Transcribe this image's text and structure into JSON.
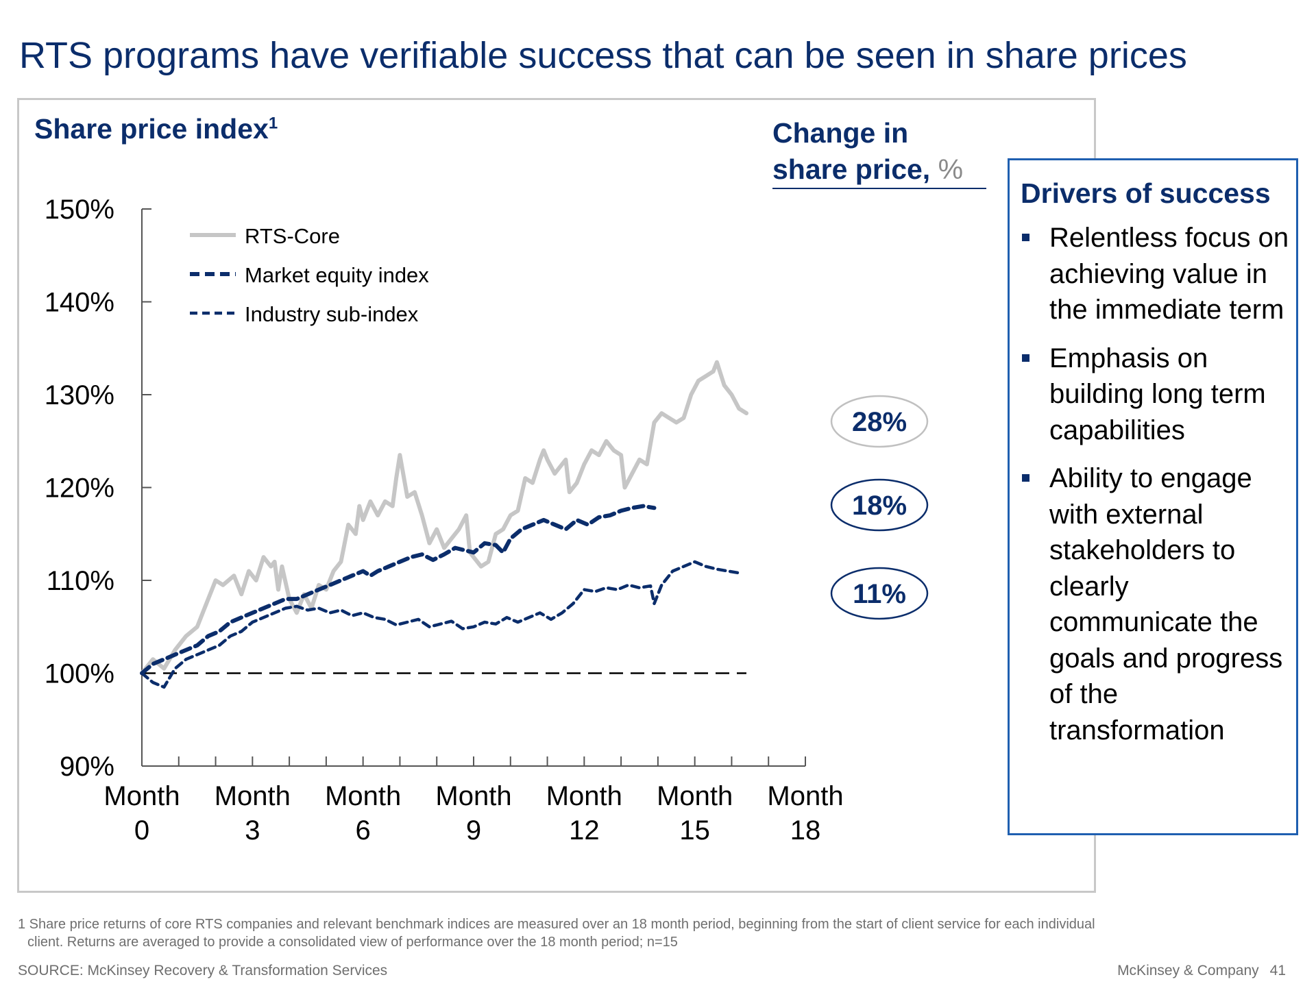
{
  "slide": {
    "title": "RTS programs have verifiable success that can be seen in share prices"
  },
  "chart_header": {
    "title": "Share price index",
    "title_sup": "1",
    "change_label": "Change in share price,",
    "change_unit": "%"
  },
  "chart_data": {
    "type": "line",
    "title": "Share price index",
    "xlabel": "",
    "ylabel": "",
    "xlim": [
      0,
      18
    ],
    "ylim": [
      90,
      150
    ],
    "y_ticks": [
      90,
      100,
      110,
      120,
      130,
      140,
      150
    ],
    "y_tick_labels": [
      "90%",
      "100%",
      "110%",
      "120%",
      "130%",
      "140%",
      "150%"
    ],
    "x_ticks": [
      0,
      3,
      6,
      9,
      12,
      15,
      18
    ],
    "x_tick_labels": [
      [
        "Month",
        "0"
      ],
      [
        "Month",
        "3"
      ],
      [
        "Month",
        "6"
      ],
      [
        "Month",
        "9"
      ],
      [
        "Month",
        "12"
      ],
      [
        "Month",
        "15"
      ],
      [
        "Month",
        "18"
      ]
    ],
    "grid": false,
    "legend_position": "top-left",
    "reference_line": {
      "y": 100,
      "style": "dashed",
      "color": "#000000"
    },
    "series": [
      {
        "name": "RTS-Core",
        "color": "#c6c6c6",
        "style": "solid",
        "end_label": "28%",
        "points": [
          [
            0,
            100
          ],
          [
            0.3,
            101.5
          ],
          [
            0.6,
            100.5
          ],
          [
            0.9,
            102.5
          ],
          [
            1.2,
            104
          ],
          [
            1.5,
            105
          ],
          [
            1.8,
            108
          ],
          [
            2.0,
            110
          ],
          [
            2.2,
            109.5
          ],
          [
            2.5,
            110.5
          ],
          [
            2.7,
            108.5
          ],
          [
            2.9,
            111
          ],
          [
            3.1,
            110
          ],
          [
            3.3,
            112.5
          ],
          [
            3.5,
            111.5
          ],
          [
            3.6,
            112
          ],
          [
            3.7,
            109
          ],
          [
            3.8,
            111.5
          ],
          [
            4.0,
            108
          ],
          [
            4.2,
            106.5
          ],
          [
            4.4,
            108.5
          ],
          [
            4.6,
            107
          ],
          [
            4.8,
            109.5
          ],
          [
            5.0,
            109
          ],
          [
            5.2,
            111
          ],
          [
            5.4,
            112
          ],
          [
            5.6,
            116
          ],
          [
            5.8,
            115
          ],
          [
            5.9,
            118
          ],
          [
            6.0,
            116.5
          ],
          [
            6.2,
            118.5
          ],
          [
            6.4,
            117
          ],
          [
            6.6,
            118.5
          ],
          [
            6.8,
            118
          ],
          [
            6.9,
            121
          ],
          [
            7.0,
            123.5
          ],
          [
            7.2,
            119
          ],
          [
            7.4,
            119.5
          ],
          [
            7.6,
            117
          ],
          [
            7.8,
            114
          ],
          [
            8.0,
            115.5
          ],
          [
            8.2,
            113.5
          ],
          [
            8.4,
            114.5
          ],
          [
            8.6,
            115.5
          ],
          [
            8.8,
            117
          ],
          [
            8.9,
            113
          ],
          [
            9.0,
            112.5
          ],
          [
            9.2,
            111.5
          ],
          [
            9.4,
            112
          ],
          [
            9.6,
            115
          ],
          [
            9.8,
            115.5
          ],
          [
            10.0,
            117
          ],
          [
            10.2,
            117.5
          ],
          [
            10.4,
            121
          ],
          [
            10.6,
            120.5
          ],
          [
            10.8,
            123
          ],
          [
            10.9,
            124
          ],
          [
            11.0,
            123
          ],
          [
            11.2,
            121.5
          ],
          [
            11.5,
            123
          ],
          [
            11.6,
            119.5
          ],
          [
            11.8,
            120.5
          ],
          [
            12.0,
            122.5
          ],
          [
            12.2,
            124
          ],
          [
            12.4,
            123.5
          ],
          [
            12.6,
            125
          ],
          [
            12.8,
            124
          ],
          [
            13.0,
            123.5
          ],
          [
            13.1,
            120
          ],
          [
            13.3,
            121.5
          ],
          [
            13.5,
            123
          ],
          [
            13.7,
            122.5
          ],
          [
            13.9,
            127
          ],
          [
            14.1,
            128
          ],
          [
            14.3,
            127.5
          ],
          [
            14.5,
            127
          ],
          [
            14.7,
            127.5
          ],
          [
            14.9,
            130
          ],
          [
            15.1,
            131.5
          ],
          [
            15.3,
            132
          ],
          [
            15.5,
            132.5
          ],
          [
            15.6,
            133.5
          ],
          [
            15.8,
            131
          ],
          [
            16.0,
            130
          ],
          [
            16.2,
            128.5
          ],
          [
            16.4,
            128
          ]
        ]
      },
      {
        "name": "Market equity index",
        "color": "#0b2d6b",
        "style": "dashed-bold",
        "end_label": "18%",
        "points": [
          [
            0,
            100
          ],
          [
            0.3,
            101
          ],
          [
            0.6,
            101.5
          ],
          [
            0.9,
            102
          ],
          [
            1.2,
            102.5
          ],
          [
            1.5,
            103
          ],
          [
            1.8,
            104
          ],
          [
            2.1,
            104.5
          ],
          [
            2.4,
            105.5
          ],
          [
            2.7,
            106
          ],
          [
            3.0,
            106.5
          ],
          [
            3.3,
            107
          ],
          [
            3.6,
            107.5
          ],
          [
            3.9,
            108
          ],
          [
            4.2,
            108
          ],
          [
            4.5,
            108.5
          ],
          [
            4.8,
            109
          ],
          [
            5.1,
            109.5
          ],
          [
            5.4,
            110
          ],
          [
            5.7,
            110.5
          ],
          [
            6.0,
            111
          ],
          [
            6.2,
            110.5
          ],
          [
            6.4,
            111
          ],
          [
            6.7,
            111.5
          ],
          [
            7.0,
            112
          ],
          [
            7.3,
            112.5
          ],
          [
            7.6,
            112.8
          ],
          [
            7.9,
            112.2
          ],
          [
            8.2,
            112.8
          ],
          [
            8.5,
            113.5
          ],
          [
            8.8,
            113.2
          ],
          [
            9.0,
            113
          ],
          [
            9.3,
            114
          ],
          [
            9.6,
            113.8
          ],
          [
            9.8,
            113
          ],
          [
            10.0,
            114.5
          ],
          [
            10.3,
            115.5
          ],
          [
            10.6,
            116
          ],
          [
            10.9,
            116.5
          ],
          [
            11.2,
            116
          ],
          [
            11.5,
            115.5
          ],
          [
            11.8,
            116.5
          ],
          [
            12.1,
            116
          ],
          [
            12.4,
            116.8
          ],
          [
            12.7,
            117
          ],
          [
            13.0,
            117.5
          ],
          [
            13.3,
            117.8
          ],
          [
            13.6,
            118
          ],
          [
            13.9,
            117.8
          ]
        ]
      },
      {
        "name": "Industry sub-index",
        "color": "#0b2d6b",
        "style": "dashed",
        "end_label": "11%",
        "points": [
          [
            0,
            100
          ],
          [
            0.3,
            99
          ],
          [
            0.6,
            98.5
          ],
          [
            0.9,
            100.5
          ],
          [
            1.2,
            101.5
          ],
          [
            1.5,
            102
          ],
          [
            1.8,
            102.5
          ],
          [
            2.1,
            103
          ],
          [
            2.4,
            104
          ],
          [
            2.7,
            104.5
          ],
          [
            3.0,
            105.5
          ],
          [
            3.3,
            106
          ],
          [
            3.6,
            106.5
          ],
          [
            3.9,
            107
          ],
          [
            4.2,
            107.2
          ],
          [
            4.5,
            106.8
          ],
          [
            4.8,
            107
          ],
          [
            5.1,
            106.5
          ],
          [
            5.4,
            106.8
          ],
          [
            5.7,
            106.2
          ],
          [
            6.0,
            106.5
          ],
          [
            6.3,
            106
          ],
          [
            6.6,
            105.8
          ],
          [
            6.9,
            105.2
          ],
          [
            7.2,
            105.5
          ],
          [
            7.5,
            105.8
          ],
          [
            7.8,
            105
          ],
          [
            8.1,
            105.3
          ],
          [
            8.4,
            105.6
          ],
          [
            8.7,
            104.8
          ],
          [
            9.0,
            105
          ],
          [
            9.3,
            105.5
          ],
          [
            9.6,
            105.3
          ],
          [
            9.9,
            106
          ],
          [
            10.2,
            105.5
          ],
          [
            10.5,
            106
          ],
          [
            10.8,
            106.5
          ],
          [
            11.1,
            105.8
          ],
          [
            11.4,
            106.5
          ],
          [
            11.7,
            107.5
          ],
          [
            12.0,
            109
          ],
          [
            12.3,
            108.8
          ],
          [
            12.6,
            109.2
          ],
          [
            12.9,
            109
          ],
          [
            13.2,
            109.5
          ],
          [
            13.5,
            109.2
          ],
          [
            13.8,
            109.4
          ],
          [
            13.9,
            107.5
          ],
          [
            14.1,
            109.5
          ],
          [
            14.4,
            111
          ],
          [
            14.7,
            111.5
          ],
          [
            15.0,
            112
          ],
          [
            15.3,
            111.5
          ],
          [
            15.6,
            111.2
          ],
          [
            15.9,
            111
          ],
          [
            16.2,
            110.8
          ]
        ]
      }
    ]
  },
  "drivers": {
    "title": "Drivers of success",
    "items": [
      "Relentless focus on achieving value in the immediate term",
      "Emphasis on building long term capabilities",
      "Ability to engage with external stakeholders to clearly communicate the goals and progress of the transformation"
    ]
  },
  "footer": {
    "footnote_line1": "1 Share price returns of core RTS companies and relevant benchmark indices are measured over an 18 month period, beginning from the start of client service for each individual",
    "footnote_line2": "client. Returns are averaged to provide a consolidated view of performance over the 18 month period; n=15",
    "source": "SOURCE: McKinsey Recovery & Transformation Services",
    "brand": "McKinsey & Company",
    "page_number": "41"
  }
}
